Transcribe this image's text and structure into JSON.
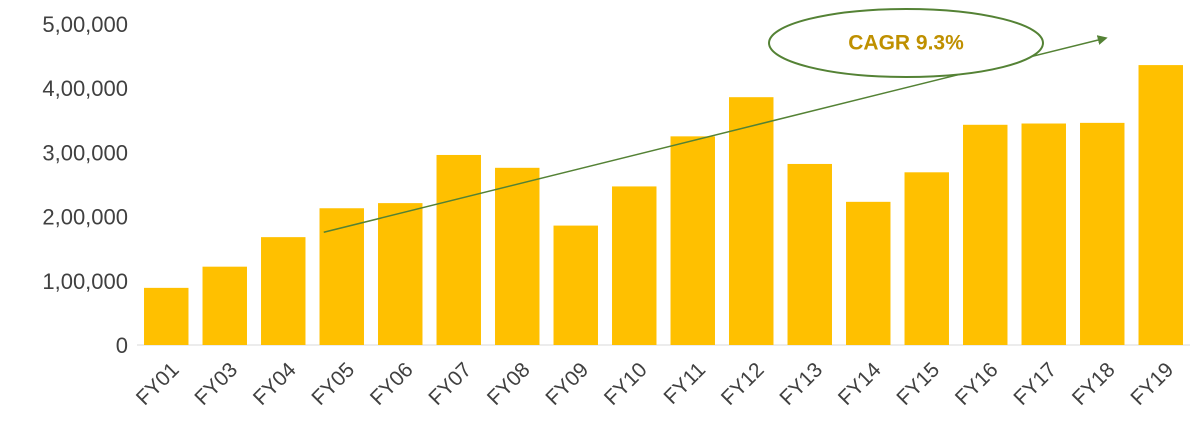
{
  "chart_data": {
    "type": "bar",
    "title": "",
    "xlabel": "",
    "ylabel": "",
    "categories": [
      "FY01",
      "FY03",
      "FY04",
      "FY05",
      "FY06",
      "FY07",
      "FY08",
      "FY09",
      "FY10",
      "FY11",
      "FY12",
      "FY13",
      "FY14",
      "FY15",
      "FY16",
      "FY17",
      "FY18",
      "FY19"
    ],
    "values": [
      89000,
      122000,
      168000,
      213000,
      221000,
      296000,
      276000,
      186000,
      247000,
      325000,
      386000,
      282000,
      223000,
      269000,
      343000,
      345000,
      346000,
      436000
    ],
    "ylim": [
      0,
      500000
    ],
    "yticks": [
      0,
      100000,
      200000,
      300000,
      400000,
      500000
    ],
    "ytick_labels": [
      "0",
      "1,00,000",
      "2,00,000",
      "3,00,000",
      "4,00,000",
      "5,00,000"
    ],
    "grid": false,
    "bar_color": "#ffc000",
    "annotation": {
      "text": "CAGR 9.3%",
      "text_color": "#bf9000",
      "ellipse_color": "#548235",
      "arrow_color": "#548235",
      "arrow_from_category": "FY05",
      "arrow_to_category": "FY19"
    }
  }
}
